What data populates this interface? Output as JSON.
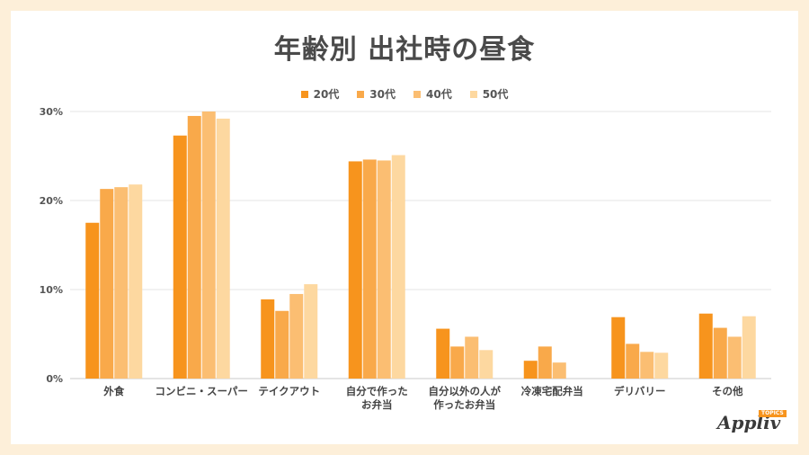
{
  "colors": {
    "page_background": "#fdefd9",
    "series": [
      "#f7941d",
      "#f9a94a",
      "#fbbe72",
      "#fdd8a0"
    ],
    "grid": "#e6e6e6",
    "axis": "#c8c8c8"
  },
  "chart_data": {
    "type": "bar",
    "title": "年齢別 出社時の昼食",
    "xlabel": "",
    "ylabel": "",
    "ylim": [
      0,
      30
    ],
    "yticks": [
      "0%",
      "10%",
      "20%",
      "30%"
    ],
    "ytick_values": [
      0,
      10,
      20,
      30
    ],
    "grid": true,
    "legend_position": "top-center",
    "categories": [
      [
        "外食"
      ],
      [
        "コンビニ・スーパー"
      ],
      [
        "テイクアウト"
      ],
      [
        "自分で作った",
        "お弁当"
      ],
      [
        "自分以外の人が",
        "作ったお弁当"
      ],
      [
        "冷凍宅配弁当"
      ],
      [
        "デリバリー"
      ],
      [
        "その他"
      ]
    ],
    "series": [
      {
        "name": "20代",
        "values": [
          17.5,
          27.3,
          8.9,
          24.4,
          5.6,
          2.0,
          6.9,
          7.3
        ]
      },
      {
        "name": "30代",
        "values": [
          21.3,
          29.5,
          7.6,
          24.6,
          3.6,
          3.6,
          3.9,
          5.7
        ]
      },
      {
        "name": "40代",
        "values": [
          21.5,
          30.0,
          9.5,
          24.5,
          4.7,
          1.8,
          3.0,
          4.7
        ]
      },
      {
        "name": "50代",
        "values": [
          21.8,
          29.2,
          10.6,
          25.1,
          3.2,
          0.0,
          2.9,
          7.0
        ]
      }
    ]
  },
  "logo": {
    "word": "Appliv",
    "badge": "TOPICS"
  }
}
